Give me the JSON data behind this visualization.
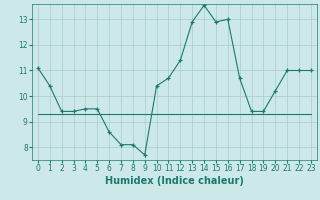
{
  "xlabel": "Humidex (Indice chaleur)",
  "bg_color": "#cce8e8",
  "line_color": "#1a7a6e",
  "marker": "+",
  "xlim": [
    -0.5,
    23.5
  ],
  "ylim": [
    7.5,
    13.6
  ],
  "xticks": [
    0,
    1,
    2,
    3,
    4,
    5,
    6,
    7,
    8,
    9,
    10,
    11,
    12,
    13,
    14,
    15,
    16,
    17,
    18,
    19,
    20,
    21,
    22,
    23
  ],
  "yticks": [
    8,
    9,
    10,
    11,
    12,
    13
  ],
  "series1_x": [
    0,
    1,
    2,
    3,
    4,
    5,
    6,
    7,
    8,
    9,
    10,
    11,
    12,
    13,
    14,
    15,
    16,
    17,
    18,
    19,
    20,
    21,
    22,
    23
  ],
  "series1_y": [
    11.1,
    10.4,
    9.4,
    9.4,
    9.5,
    9.5,
    8.6,
    8.1,
    8.1,
    7.7,
    10.4,
    10.7,
    11.4,
    12.9,
    13.55,
    12.9,
    13.0,
    10.7,
    9.4,
    9.4,
    10.2,
    11.0,
    11.0,
    11.0
  ],
  "series2_x": [
    0,
    23
  ],
  "series2_y": [
    9.3,
    9.3
  ],
  "grid_color": "#aacccc",
  "tick_fontsize": 5.5,
  "label_fontsize": 7,
  "linewidth": 0.8,
  "markersize": 3.0,
  "markeredgewidth": 0.9
}
